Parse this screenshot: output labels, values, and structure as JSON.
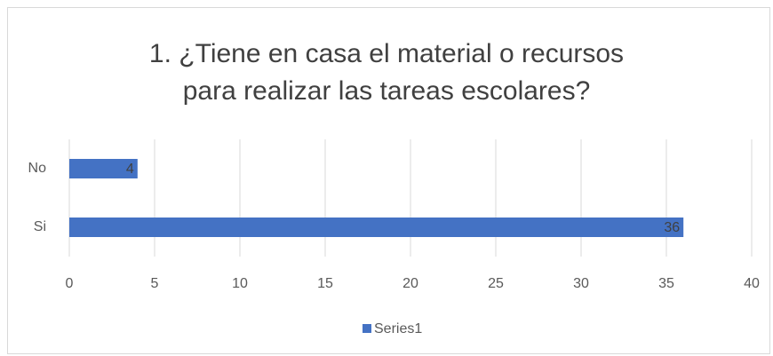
{
  "chart_data": {
    "type": "hbar",
    "title": "1. ¿Tiene en casa el material o recursos para realizar las tareas escolares?",
    "categories": [
      "No",
      "Si"
    ],
    "series": [
      {
        "name": "Series1",
        "color": "#4472c4",
        "values": [
          4,
          36
        ]
      }
    ],
    "xlim": [
      0,
      40
    ],
    "xticks": [
      0,
      5,
      10,
      15,
      20,
      25,
      30,
      35,
      40
    ],
    "grid": true,
    "legend": "bottom"
  }
}
